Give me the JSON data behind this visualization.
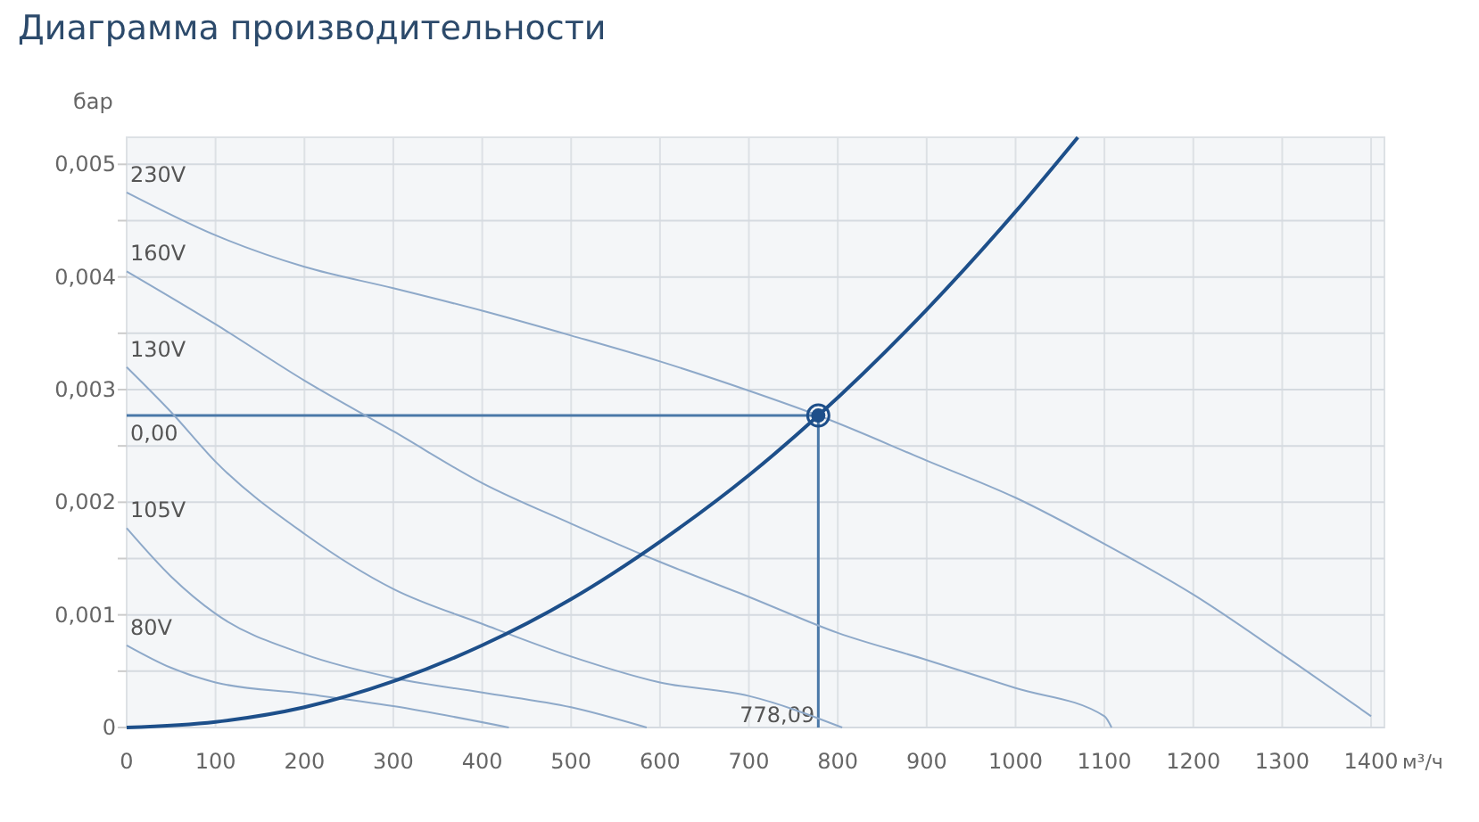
{
  "chart_data": {
    "type": "line",
    "title": "Диаграмма производительности",
    "xlabel": "м³/ч",
    "ylabel": "бар",
    "xlim": [
      0,
      1415
    ],
    "ylim": [
      0,
      0.00524
    ],
    "xticks": [
      0,
      100,
      200,
      300,
      400,
      500,
      600,
      700,
      800,
      900,
      1000,
      1100,
      1200,
      1300,
      1400
    ],
    "yticks": [
      {
        "value": 0,
        "label": "0"
      },
      {
        "value": 0.0005,
        "label": null
      },
      {
        "value": 0.001,
        "label": "0,001"
      },
      {
        "value": 0.0015,
        "label": null
      },
      {
        "value": 0.002,
        "label": "0,002"
      },
      {
        "value": 0.0025,
        "label": null
      },
      {
        "value": 0.003,
        "label": "0,003"
      },
      {
        "value": 0.0035,
        "label": null
      },
      {
        "value": 0.004,
        "label": "0,004"
      },
      {
        "value": 0.0045,
        "label": null
      },
      {
        "value": 0.005,
        "label": "0,005"
      }
    ],
    "grid": true,
    "marker": "none",
    "line_style": "solid",
    "series": [
      {
        "name": "230V",
        "color": "#8ea9c9",
        "x": [
          0,
          100,
          200,
          300,
          400,
          500,
          600,
          700,
          778.09,
          900,
          1000,
          1100,
          1200,
          1300,
          1400
        ],
        "values": [
          0.00475,
          0.00437,
          0.00409,
          0.0039,
          0.0037,
          0.00348,
          0.00325,
          0.00299,
          0.00277,
          0.00237,
          0.00204,
          0.00163,
          0.00118,
          0.00065,
          0.0001
        ]
      },
      {
        "name": "160V",
        "color": "#8ea9c9",
        "x": [
          0,
          100,
          200,
          300,
          400,
          500,
          600,
          700,
          800,
          900,
          1000,
          1100,
          1108
        ],
        "values": [
          0.00405,
          0.00358,
          0.00308,
          0.00263,
          0.00217,
          0.00181,
          0.00147,
          0.00116,
          0.00084,
          0.0006,
          0.00035,
          0.0001,
          0
        ]
      },
      {
        "name": "130V",
        "color": "#8ea9c9",
        "x": [
          0,
          50,
          100,
          200,
          300,
          400,
          500,
          600,
          700,
          805
        ],
        "values": [
          0.0032,
          0.0028,
          0.00236,
          0.00172,
          0.00123,
          0.00092,
          0.00063,
          0.0004,
          0.00028,
          0
        ]
      },
      {
        "name": "105V",
        "color": "#8ea9c9",
        "x": [
          0,
          50,
          100,
          200,
          300,
          400,
          500,
          585
        ],
        "values": [
          0.00177,
          0.00134,
          0.00101,
          0.00065,
          0.00044,
          0.00031,
          0.00018,
          0
        ]
      },
      {
        "name": "80V",
        "color": "#8ea9c9",
        "x": [
          0,
          50,
          100,
          200,
          300,
          430
        ],
        "values": [
          0.00073,
          0.00053,
          0.0004,
          0.0003,
          0.00019,
          0
        ]
      },
      {
        "color": "#1d4f8a",
        "x": [
          0,
          100,
          200,
          300,
          400,
          500,
          600,
          700,
          778.09,
          900,
          1000,
          1070
        ],
        "values": [
          0,
          5e-05,
          0.00018,
          0.00041,
          0.00073,
          0.00114,
          0.00165,
          0.00224,
          0.00277,
          0.00371,
          0.00458,
          0.00524
        ]
      },
      {
        "type": "scatter",
        "marker": "circle",
        "color": "#1d4f8a",
        "x": [
          778.09
        ],
        "values": [
          0.00277
        ]
      }
    ],
    "ref_lines": [
      {
        "axis": "y",
        "value": 0.00277,
        "label": "0,00",
        "color": "#4a78a8"
      },
      {
        "axis": "x",
        "value": 778.09,
        "label": "778,09",
        "color": "#4a78a8"
      }
    ]
  }
}
